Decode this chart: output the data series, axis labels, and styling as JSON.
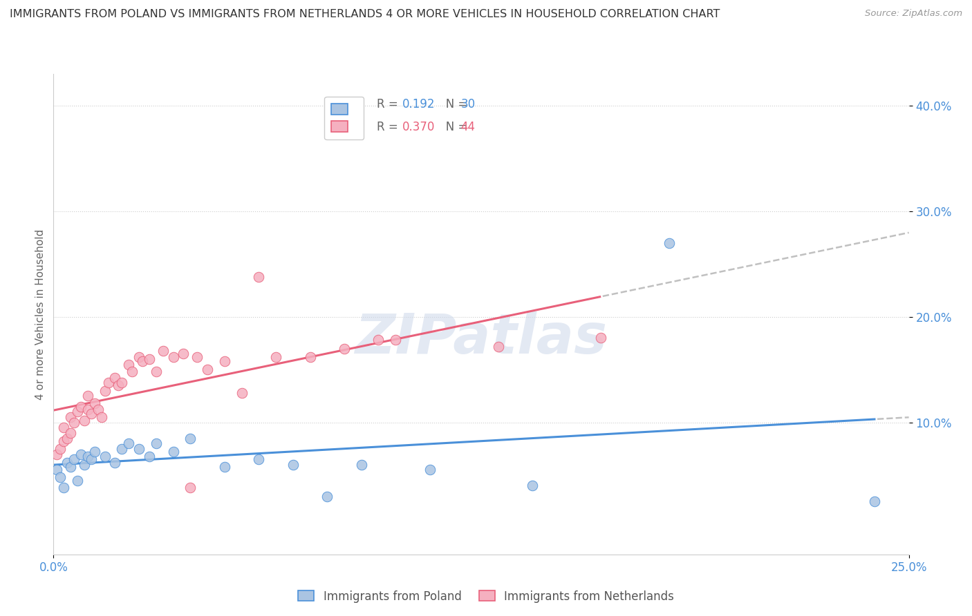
{
  "title": "IMMIGRANTS FROM POLAND VS IMMIGRANTS FROM NETHERLANDS 4 OR MORE VEHICLES IN HOUSEHOLD CORRELATION CHART",
  "source": "Source: ZipAtlas.com",
  "ylabel": "4 or more Vehicles in Household",
  "watermark": "ZIPatlas",
  "poland_color": "#aac4e2",
  "netherlands_color": "#f5b0c0",
  "poland_line_color": "#4a90d9",
  "netherlands_line_color": "#e8607a",
  "R_poland": 0.192,
  "N_poland": 30,
  "R_netherlands": 0.37,
  "N_netherlands": 44,
  "xlim": [
    0.0,
    0.25
  ],
  "ylim": [
    -0.025,
    0.43
  ],
  "poland_x": [
    0.001,
    0.002,
    0.003,
    0.004,
    0.005,
    0.006,
    0.007,
    0.008,
    0.009,
    0.01,
    0.011,
    0.012,
    0.015,
    0.018,
    0.02,
    0.022,
    0.025,
    0.028,
    0.03,
    0.035,
    0.04,
    0.05,
    0.06,
    0.07,
    0.08,
    0.09,
    0.11,
    0.14,
    0.18,
    0.24
  ],
  "poland_y": [
    0.055,
    0.048,
    0.038,
    0.062,
    0.058,
    0.065,
    0.045,
    0.07,
    0.06,
    0.068,
    0.065,
    0.072,
    0.068,
    0.062,
    0.075,
    0.08,
    0.075,
    0.068,
    0.08,
    0.072,
    0.085,
    0.058,
    0.065,
    0.06,
    0.03,
    0.06,
    0.055,
    0.04,
    0.27,
    0.025
  ],
  "netherlands_x": [
    0.001,
    0.002,
    0.003,
    0.003,
    0.004,
    0.005,
    0.005,
    0.006,
    0.007,
    0.008,
    0.009,
    0.01,
    0.01,
    0.011,
    0.012,
    0.013,
    0.014,
    0.015,
    0.016,
    0.018,
    0.019,
    0.02,
    0.022,
    0.023,
    0.025,
    0.026,
    0.028,
    0.03,
    0.032,
    0.035,
    0.038,
    0.04,
    0.042,
    0.045,
    0.05,
    0.055,
    0.06,
    0.065,
    0.075,
    0.085,
    0.095,
    0.1,
    0.13,
    0.16
  ],
  "netherlands_y": [
    0.07,
    0.075,
    0.082,
    0.095,
    0.085,
    0.09,
    0.105,
    0.1,
    0.11,
    0.115,
    0.102,
    0.112,
    0.125,
    0.108,
    0.118,
    0.112,
    0.105,
    0.13,
    0.138,
    0.142,
    0.135,
    0.138,
    0.155,
    0.148,
    0.162,
    0.158,
    0.16,
    0.148,
    0.168,
    0.162,
    0.165,
    0.038,
    0.162,
    0.15,
    0.158,
    0.128,
    0.238,
    0.162,
    0.162,
    0.17,
    0.178,
    0.178,
    0.172,
    0.18
  ]
}
